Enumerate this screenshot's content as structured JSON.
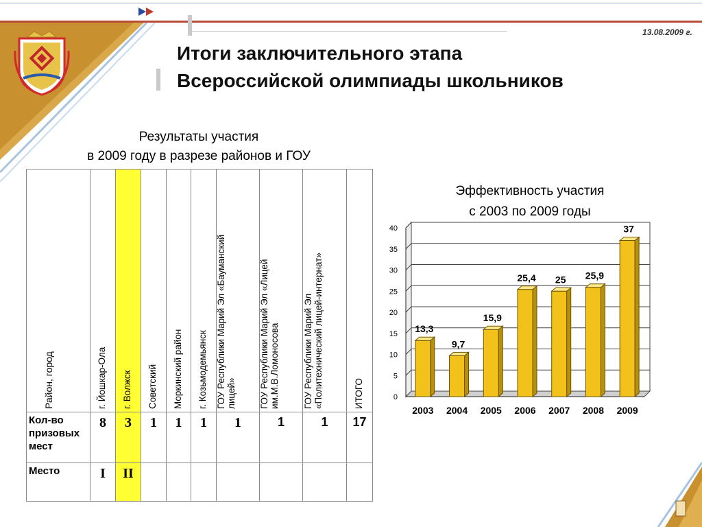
{
  "date": "13.08.2009 г.",
  "title": {
    "line1": "Итоги заключительного этапа",
    "line2": "Всероссийской олимпиады школьников"
  },
  "left_caption": {
    "line1": "Результаты участия",
    "line2": "в 2009 году в разрезе районов и ГОУ"
  },
  "right_caption": {
    "line1": "Эффективность участия",
    "line2": "с 2003 по 2009 годы"
  },
  "table": {
    "headers": [
      {
        "lines": [
          "Район, город"
        ]
      },
      {
        "lines": [
          "г. Йошкар-Ола"
        ]
      },
      {
        "lines": [
          "г. Волжск"
        ]
      },
      {
        "lines": [
          "Советский"
        ]
      },
      {
        "lines": [
          "Моркинский район"
        ]
      },
      {
        "lines": [
          "г. Козьмодемьянск"
        ]
      },
      {
        "lines": [
          "ГОУ Республики Марий Эл «Бауманский",
          "лицей»"
        ]
      },
      {
        "lines": [
          "ГОУ Республики Марий Эл «Лицей",
          "им.М.В.Ломоносова"
        ]
      },
      {
        "lines": [
          "ГОУ Республики Марий Эл",
          "«Политехнический лицей-интернат»"
        ]
      },
      {
        "lines": [
          "ИТОГО"
        ]
      }
    ],
    "row_prizes": {
      "label": "Кол-во призовых мест",
      "values": [
        "8",
        "3",
        "1",
        "1",
        "1",
        "1",
        "1",
        "1",
        "17"
      ]
    },
    "row_place": {
      "label": "Место",
      "values": [
        "I",
        "II",
        "",
        "",
        "",
        "",
        "",
        "",
        ""
      ]
    },
    "highlight_color": "#ffff33"
  },
  "chart_data": {
    "type": "bar",
    "categories": [
      "2003",
      "2004",
      "2005",
      "2006",
      "2007",
      "2008",
      "2009"
    ],
    "values": [
      13.3,
      9.7,
      15.9,
      25.4,
      25,
      25.9,
      37
    ],
    "value_labels": [
      "13,3",
      "9,7",
      "15,9",
      "25,4",
      "25",
      "25,9",
      "37"
    ],
    "ylim": [
      0,
      40
    ],
    "yticks": [
      "0",
      "5",
      "10",
      "15",
      "20",
      "25",
      "30",
      "35",
      "40"
    ],
    "grid": true,
    "bar_color": "#f2c21b",
    "style": "3d"
  }
}
